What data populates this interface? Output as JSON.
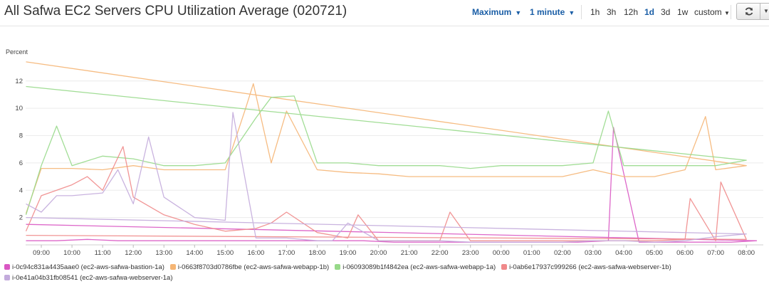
{
  "header": {
    "title": "All Safwa EC2 Servers CPU Utilization Average (020721)",
    "statistic": "Maximum",
    "period": "1 minute",
    "ranges": [
      "1h",
      "3h",
      "12h",
      "1d",
      "3d",
      "1w"
    ],
    "active_range": "1d",
    "custom_label": "custom",
    "refresh_icon": "refresh-icon",
    "more_icon": "caret-down-icon"
  },
  "chart_data": {
    "type": "line",
    "ylabel": "Percent",
    "ylim": [
      0,
      13.5
    ],
    "yticks": [
      2,
      4,
      6,
      8,
      10,
      12
    ],
    "x_tick_labels": [
      "09:00",
      "10:00",
      "11:00",
      "12:00",
      "13:00",
      "14:00",
      "15:00",
      "16:00",
      "17:00",
      "18:00",
      "19:00",
      "20:00",
      "21:00",
      "22:00",
      "23:00",
      "00:00",
      "01:00",
      "02:00",
      "03:00",
      "04:00",
      "05:00",
      "06:00",
      "07:00",
      "08:00"
    ],
    "grid": true,
    "legend_position": "bottom",
    "series": [
      {
        "name": "i-0c94c831a4435aae0 (ec2-aws-safwa-bastion-1a)",
        "color": "#d957c3",
        "x": [
          "08:30",
          "09:30",
          "10:30",
          "11:30",
          "12:30",
          "13:30",
          "14:30",
          "15:30",
          "16:30",
          "17:30",
          "18:30",
          "19:30",
          "20:30",
          "21:30",
          "22:30",
          "23:30",
          "00:30",
          "01:30",
          "02:30",
          "03:30",
          "03:40",
          "04:30",
          "05:30",
          "06:30",
          "07:30",
          "08:20",
          "08:30"
        ],
        "values": [
          0.3,
          0.3,
          0.4,
          0.3,
          0.3,
          0.3,
          0.3,
          0.3,
          0.3,
          0.3,
          0.3,
          0.3,
          0.2,
          0.2,
          0.2,
          0.2,
          0.2,
          0.2,
          0.2,
          0.3,
          8.6,
          0.2,
          0.2,
          0.2,
          0.2,
          0.3,
          1.5
        ]
      },
      {
        "name": "i-0663f8703d0786fbe (ec2-aws-safwa-webapp-1b)",
        "color": "#f5b574",
        "x": [
          "08:30",
          "09:00",
          "10:00",
          "11:00",
          "12:00",
          "13:00",
          "14:00",
          "15:00",
          "15:40",
          "15:55",
          "16:30",
          "17:00",
          "18:00",
          "19:00",
          "20:00",
          "21:00",
          "22:00",
          "23:00",
          "00:00",
          "01:00",
          "02:00",
          "03:00",
          "04:00",
          "05:00",
          "06:00",
          "06:40",
          "07:00",
          "08:00",
          "08:30"
        ],
        "values": [
          2.3,
          5.6,
          5.6,
          5.5,
          5.8,
          5.5,
          5.5,
          5.5,
          10.0,
          11.8,
          6.0,
          9.8,
          5.5,
          5.3,
          5.2,
          5.0,
          5.0,
          5.0,
          5.0,
          5.0,
          5.0,
          5.5,
          5.0,
          5.0,
          5.5,
          9.4,
          5.5,
          5.8,
          13.4
        ]
      },
      {
        "name": "i-06093089b1f4842ea (ec2-aws-safwa-webapp-1a)",
        "color": "#97d989",
        "x": [
          "08:30",
          "09:00",
          "09:30",
          "10:00",
          "11:00",
          "12:00",
          "13:00",
          "14:00",
          "15:00",
          "16:00",
          "16:30",
          "17:15",
          "18:00",
          "19:00",
          "20:00",
          "21:00",
          "22:00",
          "23:00",
          "00:00",
          "01:00",
          "02:00",
          "03:00",
          "03:30",
          "04:00",
          "05:00",
          "06:00",
          "07:00",
          "08:00",
          "08:30"
        ],
        "values": [
          2.2,
          5.8,
          8.7,
          5.8,
          6.5,
          6.3,
          5.8,
          5.8,
          6.0,
          9.3,
          10.8,
          10.9,
          6.0,
          6.0,
          5.8,
          5.8,
          5.8,
          5.6,
          5.8,
          5.8,
          5.8,
          6.0,
          9.8,
          5.8,
          5.8,
          5.8,
          5.8,
          6.2,
          11.6
        ]
      },
      {
        "name": "i-0ab6e17937c999266 (ec2-aws-safwa-webserver-1b)",
        "color": "#f0898a",
        "x": [
          "08:30",
          "09:00",
          "10:00",
          "10:30",
          "11:00",
          "11:40",
          "12:00",
          "13:00",
          "14:00",
          "15:00",
          "16:00",
          "16:30",
          "17:00",
          "18:00",
          "19:00",
          "19:20",
          "20:00",
          "21:00",
          "22:00",
          "22:20",
          "23:00",
          "00:00",
          "01:00",
          "02:00",
          "03:00",
          "04:00",
          "05:00",
          "06:00",
          "06:10",
          "07:00",
          "07:10",
          "08:00",
          "08:30"
        ],
        "values": [
          1.0,
          3.6,
          4.4,
          5.0,
          4.0,
          7.2,
          3.5,
          2.2,
          1.5,
          1.0,
          1.2,
          1.6,
          2.4,
          0.9,
          0.5,
          2.2,
          0.3,
          0.3,
          0.3,
          2.4,
          0.3,
          0.3,
          0.3,
          0.3,
          0.3,
          0.3,
          0.3,
          0.4,
          3.4,
          0.3,
          4.6,
          0.4,
          0.7
        ]
      },
      {
        "name": "i-0e41a04b31fb08541 (ec2-aws-safwa-webserver-1a)",
        "color": "#c3abdc",
        "x": [
          "08:30",
          "09:00",
          "09:30",
          "10:00",
          "11:00",
          "11:30",
          "12:00",
          "12:30",
          "13:00",
          "14:00",
          "15:00",
          "15:15",
          "16:00",
          "17:00",
          "18:00",
          "18:30",
          "19:00",
          "20:00",
          "21:00",
          "22:00",
          "23:00",
          "00:00",
          "01:00",
          "02:00",
          "03:00",
          "04:00",
          "05:00",
          "06:00",
          "07:00",
          "08:00",
          "08:30"
        ],
        "values": [
          3.0,
          2.4,
          3.6,
          3.6,
          3.8,
          5.5,
          3.0,
          7.9,
          3.5,
          2.0,
          1.8,
          9.7,
          0.5,
          0.5,
          0.3,
          0.3,
          1.6,
          0.3,
          0.3,
          0.3,
          0.2,
          0.2,
          0.2,
          0.2,
          0.3,
          0.3,
          0.2,
          0.3,
          0.6,
          0.8,
          2.0
        ]
      }
    ]
  }
}
